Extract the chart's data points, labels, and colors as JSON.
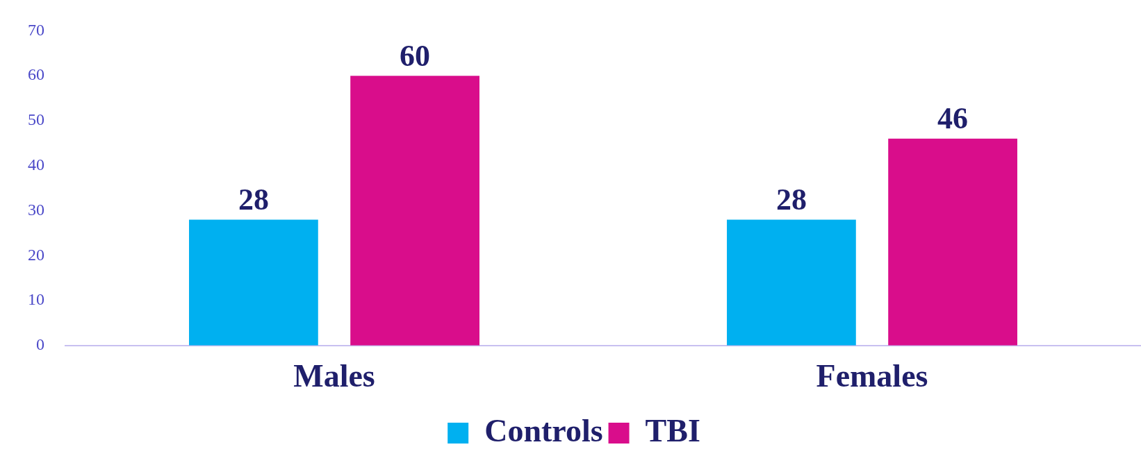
{
  "chart_data": {
    "type": "bar",
    "categories": [
      "Males",
      "Females"
    ],
    "series": [
      {
        "name": "Controls",
        "color": "#00b0f0",
        "values": [
          28,
          28
        ]
      },
      {
        "name": "TBI",
        "color": "#d90d8b",
        "values": [
          60,
          46
        ]
      }
    ],
    "ylim": [
      0,
      70
    ],
    "yticks": [
      0,
      10,
      20,
      30,
      40,
      50,
      60,
      70
    ],
    "grid": false,
    "legend": "bottom",
    "data_labels": true
  }
}
